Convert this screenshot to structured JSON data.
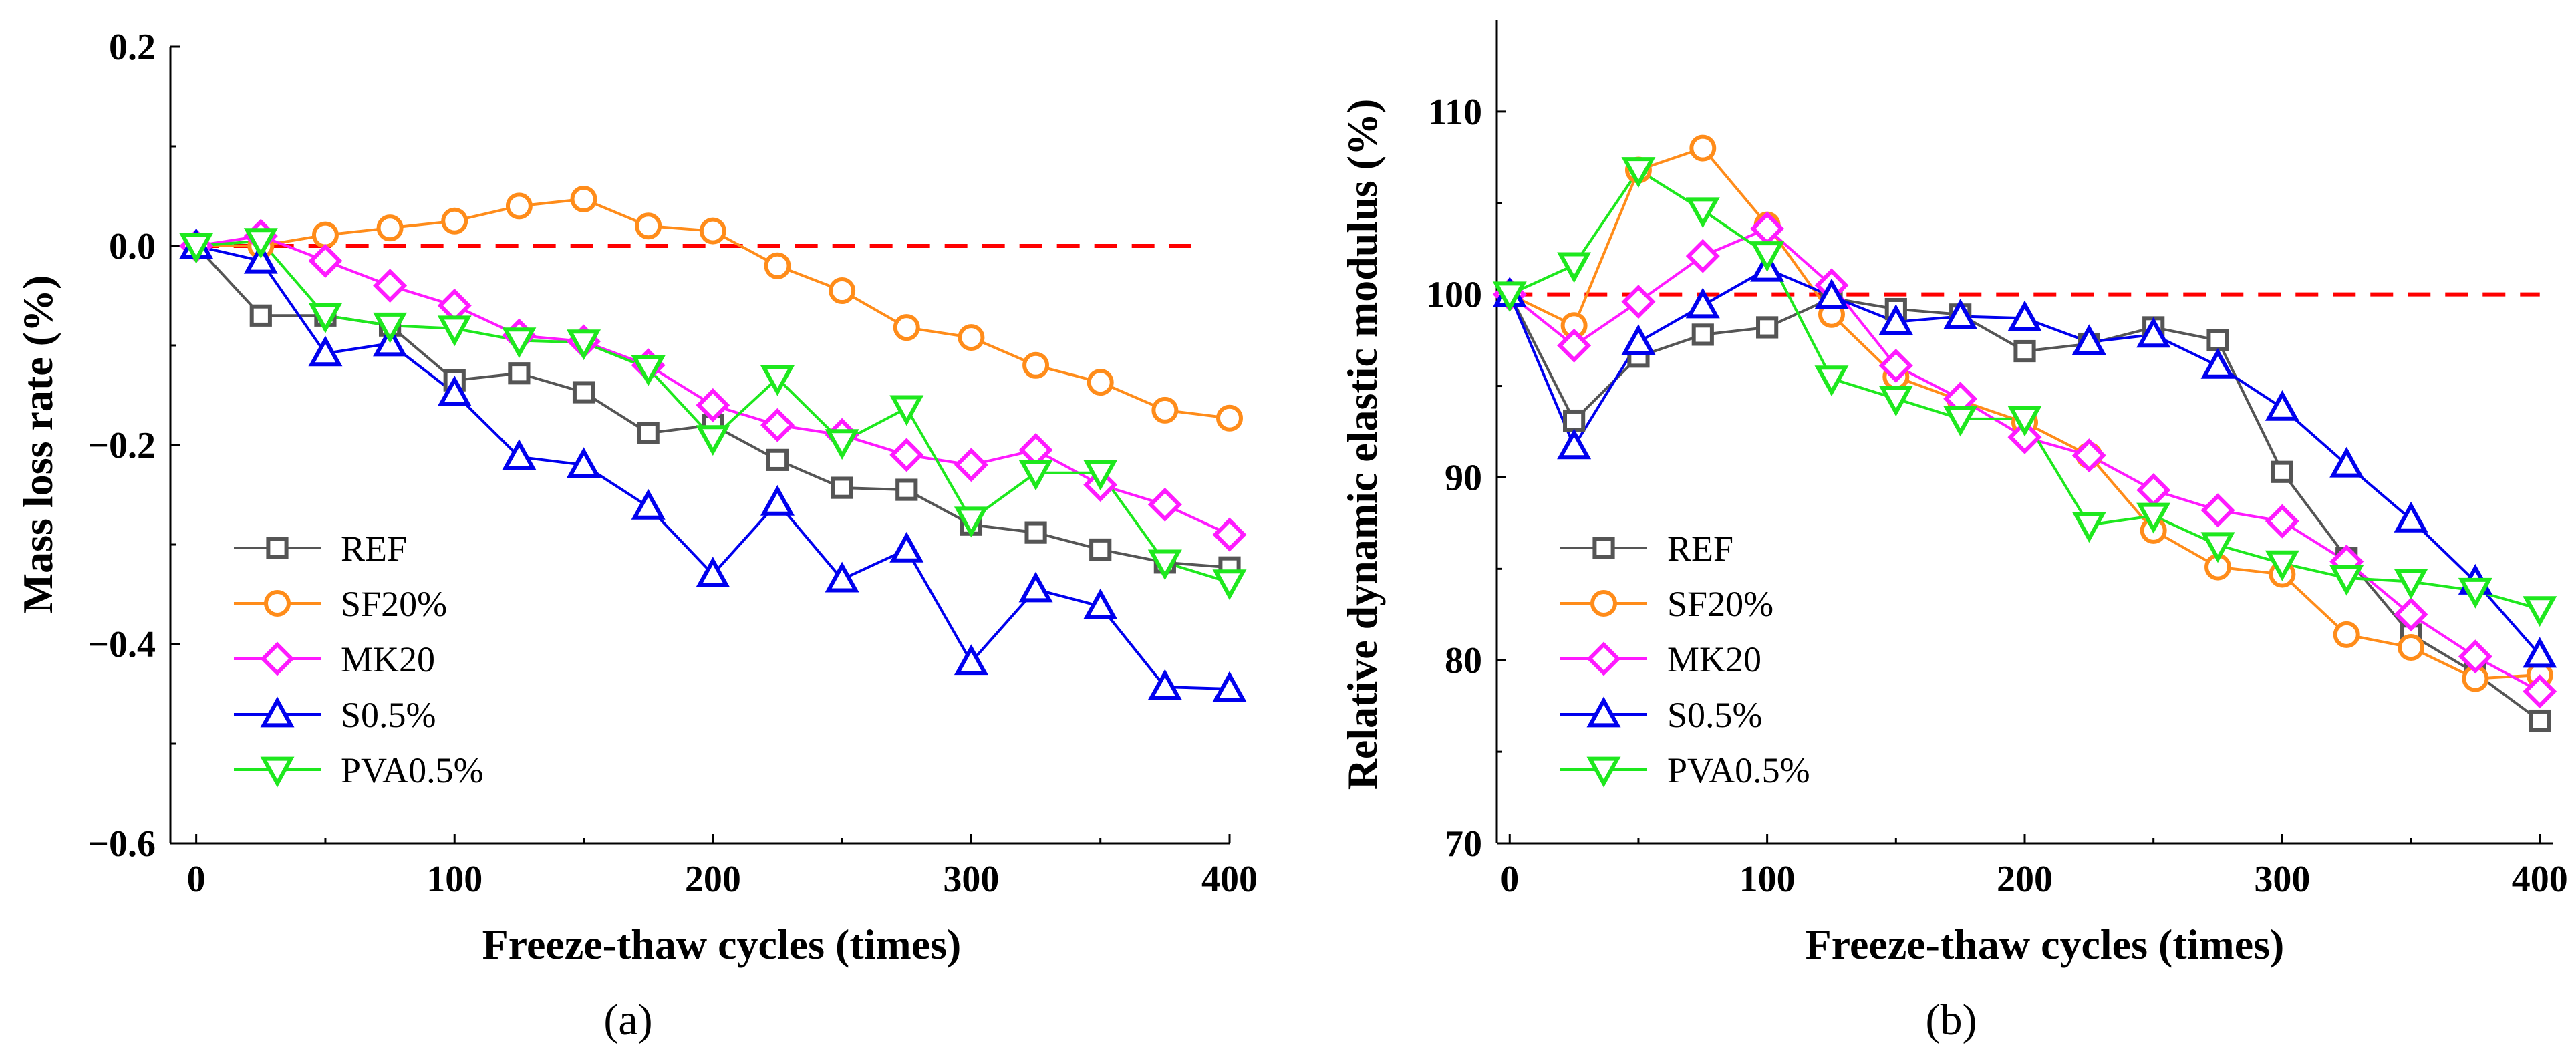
{
  "chart_data": [
    {
      "panel": "a",
      "type": "line",
      "xlabel": "Freeze-thaw cycles (times)",
      "ylabel": "Mass loss rate (%)",
      "xlim": [
        -10,
        400
      ],
      "ylim": [
        -0.6,
        0.2
      ],
      "xticks": [
        0,
        100,
        200,
        300,
        400
      ],
      "yticks": [
        -0.6,
        -0.4,
        -0.2,
        0.0,
        0.2
      ],
      "ytick_labels": [
        "−0.6",
        "−0.4",
        "−0.2",
        "0.0",
        "0.2"
      ],
      "reference_line": 0.0,
      "reference_line_xrange": [
        0,
        385
      ],
      "legend_position": "bottom-left",
      "x": [
        0,
        25,
        50,
        75,
        100,
        125,
        150,
        175,
        200,
        225,
        250,
        275,
        300,
        325,
        350,
        375,
        400
      ],
      "series": [
        {
          "name": "REF",
          "marker": "square",
          "color": "#555555",
          "values": [
            0,
            -0.07,
            -0.07,
            -0.08,
            -0.135,
            -0.128,
            -0.147,
            -0.188,
            -0.18,
            -0.215,
            -0.243,
            -0.245,
            -0.28,
            -0.288,
            -0.305,
            -0.318,
            -0.323
          ]
        },
        {
          "name": "SF20%",
          "marker": "circle",
          "color": "#ff8c1a",
          "values": [
            0,
            0.0,
            0.011,
            0.018,
            0.025,
            0.04,
            0.047,
            0.02,
            0.015,
            -0.02,
            -0.045,
            -0.082,
            -0.092,
            -0.12,
            -0.137,
            -0.165,
            -0.173
          ]
        },
        {
          "name": "MK20",
          "marker": "diamond",
          "color": "#ff1aff",
          "values": [
            0,
            0.01,
            -0.015,
            -0.04,
            -0.06,
            -0.09,
            -0.096,
            -0.12,
            -0.16,
            -0.18,
            -0.19,
            -0.21,
            -0.22,
            -0.205,
            -0.24,
            -0.26,
            -0.29
          ]
        },
        {
          "name": "S0.5%",
          "marker": "triangle-up",
          "color": "#0000ee",
          "values": [
            0,
            -0.015,
            -0.108,
            -0.098,
            -0.148,
            -0.212,
            -0.22,
            -0.262,
            -0.33,
            -0.258,
            -0.335,
            -0.305,
            -0.418,
            -0.345,
            -0.362,
            -0.443,
            -0.445
          ]
        },
        {
          "name": "PVA0.5%",
          "marker": "triangle-down",
          "color": "#1ee81e",
          "values": [
            0,
            0.005,
            -0.07,
            -0.08,
            -0.083,
            -0.095,
            -0.097,
            -0.123,
            -0.193,
            -0.133,
            -0.197,
            -0.163,
            -0.275,
            -0.228,
            -0.228,
            -0.318,
            -0.338
          ]
        }
      ]
    },
    {
      "panel": "b",
      "type": "line",
      "xlabel": "Freeze-thaw cycles (times)",
      "ylabel": "Relative dynamic elastic modulus (%)",
      "xlim": [
        -5,
        405
      ],
      "ylim": [
        70,
        115
      ],
      "xticks": [
        0,
        100,
        200,
        300,
        400
      ],
      "yticks": [
        70,
        80,
        90,
        100,
        110
      ],
      "ytick_labels": [
        "70",
        "80",
        "90",
        "100",
        "110"
      ],
      "reference_line": 100,
      "reference_line_xrange": [
        0,
        400
      ],
      "legend_position": "bottom-left",
      "x": [
        0,
        25,
        50,
        75,
        100,
        125,
        150,
        175,
        200,
        225,
        250,
        275,
        300,
        325,
        350,
        375,
        400
      ],
      "series": [
        {
          "name": "REF",
          "marker": "square",
          "color": "#555555",
          "values": [
            100,
            93.1,
            96.6,
            97.8,
            98.2,
            99.8,
            99.2,
            98.9,
            96.9,
            97.3,
            98.2,
            97.5,
            90.3,
            85.6,
            81.4,
            79.3,
            76.7
          ]
        },
        {
          "name": "SF20%",
          "marker": "circle",
          "color": "#ff8c1a",
          "values": [
            100,
            98.3,
            106.8,
            108.0,
            103.8,
            98.9,
            95.5,
            94.2,
            93.0,
            91.2,
            87.1,
            85.1,
            84.7,
            81.4,
            80.7,
            79.0,
            79.2
          ]
        },
        {
          "name": "MK20",
          "marker": "diamond",
          "color": "#ff1aff",
          "values": [
            100,
            97.2,
            99.6,
            102.1,
            103.6,
            100.5,
            96.1,
            94.3,
            92.2,
            91.2,
            89.3,
            88.2,
            87.6,
            85.4,
            82.5,
            80.2,
            78.3
          ]
        },
        {
          "name": "S0.5%",
          "marker": "triangle-up",
          "color": "#0000ee",
          "values": [
            100,
            91.7,
            97.4,
            99.4,
            101.4,
            99.9,
            98.5,
            98.8,
            98.7,
            97.4,
            97.8,
            96.1,
            93.8,
            90.7,
            87.7,
            84.3,
            80.3
          ]
        },
        {
          "name": "PVA0.5%",
          "marker": "triangle-down",
          "color": "#1ee81e",
          "values": [
            100,
            101.6,
            106.8,
            104.6,
            102.2,
            95.4,
            94.3,
            93.2,
            93.2,
            87.4,
            87.9,
            86.3,
            85.3,
            84.5,
            84.3,
            83.8,
            82.8
          ]
        }
      ]
    }
  ],
  "panel_labels": [
    "(a)",
    "(b)"
  ],
  "colors": {
    "reference_line": "#ff0000",
    "axis": "#000000"
  }
}
